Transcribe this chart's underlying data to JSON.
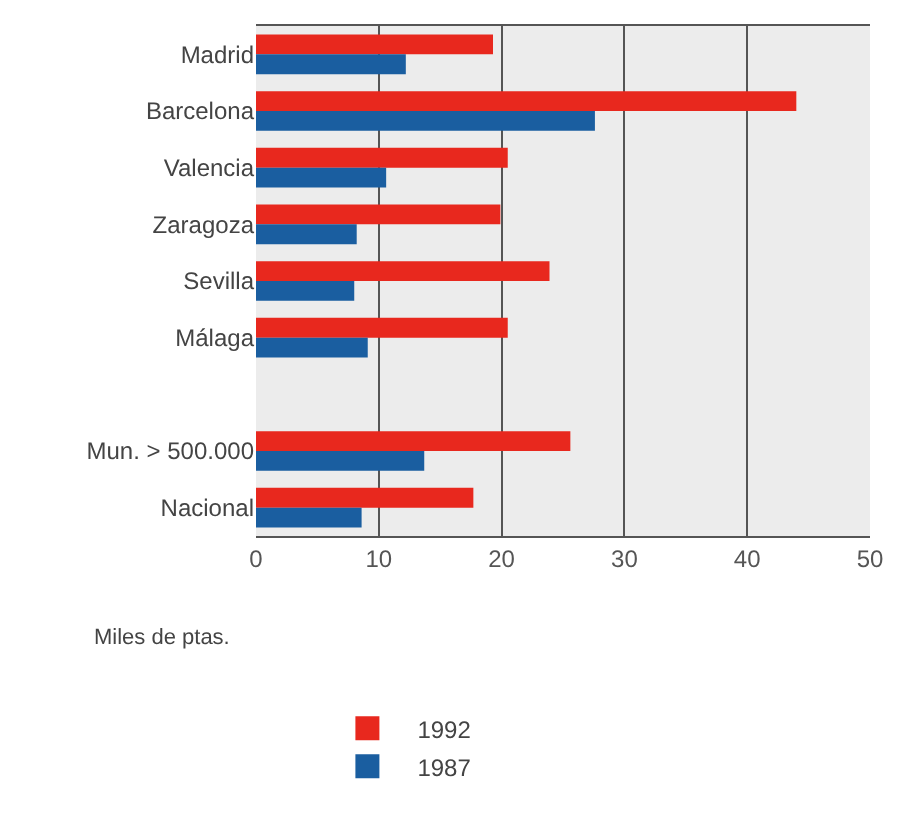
{
  "chart_data": {
    "type": "bar",
    "orientation": "horizontal",
    "xlabel": "Miles de ptas.",
    "categories": [
      "Madrid",
      "Barcelona",
      "Valencia",
      "Zaragoza",
      "Sevilla",
      "Málaga",
      null,
      "Mun. > 500.000",
      "Nacional"
    ],
    "series": [
      {
        "name": "1992",
        "color": "#e8281e",
        "values": [
          19.3,
          44.0,
          20.5,
          19.9,
          23.9,
          20.5,
          null,
          25.6,
          17.7
        ]
      },
      {
        "name": "1987",
        "color": "#1a5ea0",
        "values": [
          12.2,
          27.6,
          10.6,
          8.2,
          8.0,
          9.1,
          null,
          13.7,
          8.6
        ]
      }
    ],
    "xlim": [
      0,
      50
    ],
    "xticks": [
      0,
      10,
      20,
      30,
      40,
      50
    ],
    "grid": "x",
    "legend": "bottom"
  }
}
